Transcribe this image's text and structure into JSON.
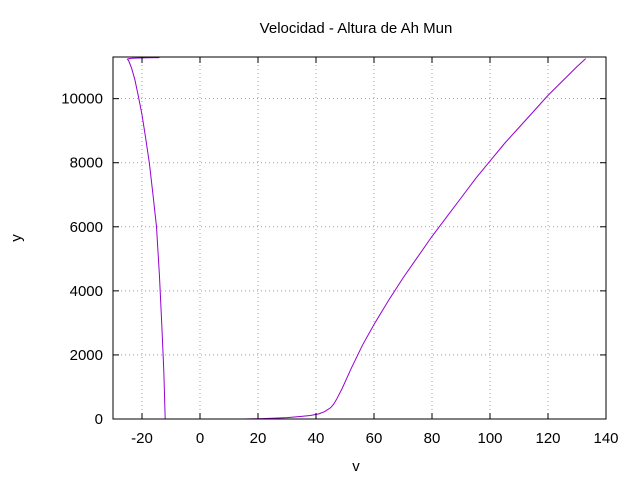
{
  "chart_data": {
    "type": "line",
    "title": "Velocidad - Altura de Ah Mun",
    "xlabel": "v",
    "ylabel": "y",
    "xlim": [
      -30,
      140
    ],
    "ylim": [
      0,
      11300
    ],
    "xticks": [
      -20,
      0,
      20,
      40,
      60,
      80,
      100,
      120,
      140
    ],
    "yticks": [
      0,
      2000,
      4000,
      6000,
      8000,
      10000
    ],
    "grid": true,
    "color": "#9400d3",
    "series": [
      {
        "x": [
          -12,
          -12.5,
          -13.2,
          -14.0,
          -15.0,
          -16.2,
          -17.5,
          -18.8,
          -20.0,
          -21.3,
          -22.5,
          -23.6,
          -24.6,
          -25.0,
          -24.8,
          -23.5,
          -21,
          -18,
          -14
        ],
        "y": [
          0,
          1500,
          3000,
          4500,
          6000,
          7000,
          8000,
          8800,
          9500,
          10100,
          10600,
          10950,
          11180,
          11230,
          11240,
          11260,
          11270,
          11275,
          11280
        ]
      },
      {
        "x": [
          15,
          20,
          25,
          30,
          35,
          38,
          41,
          43,
          45,
          46,
          47,
          49,
          52,
          56,
          60,
          65,
          70,
          75,
          80,
          85,
          90,
          95,
          100,
          105,
          110,
          115,
          120,
          125,
          130,
          133
        ],
        "y": [
          0,
          10,
          25,
          45,
          80,
          110,
          160,
          230,
          350,
          450,
          600,
          950,
          1550,
          2300,
          2950,
          3700,
          4400,
          5050,
          5700,
          6300,
          6900,
          7500,
          8050,
          8600,
          9100,
          9600,
          10100,
          10550,
          11000,
          11250
        ]
      }
    ]
  }
}
